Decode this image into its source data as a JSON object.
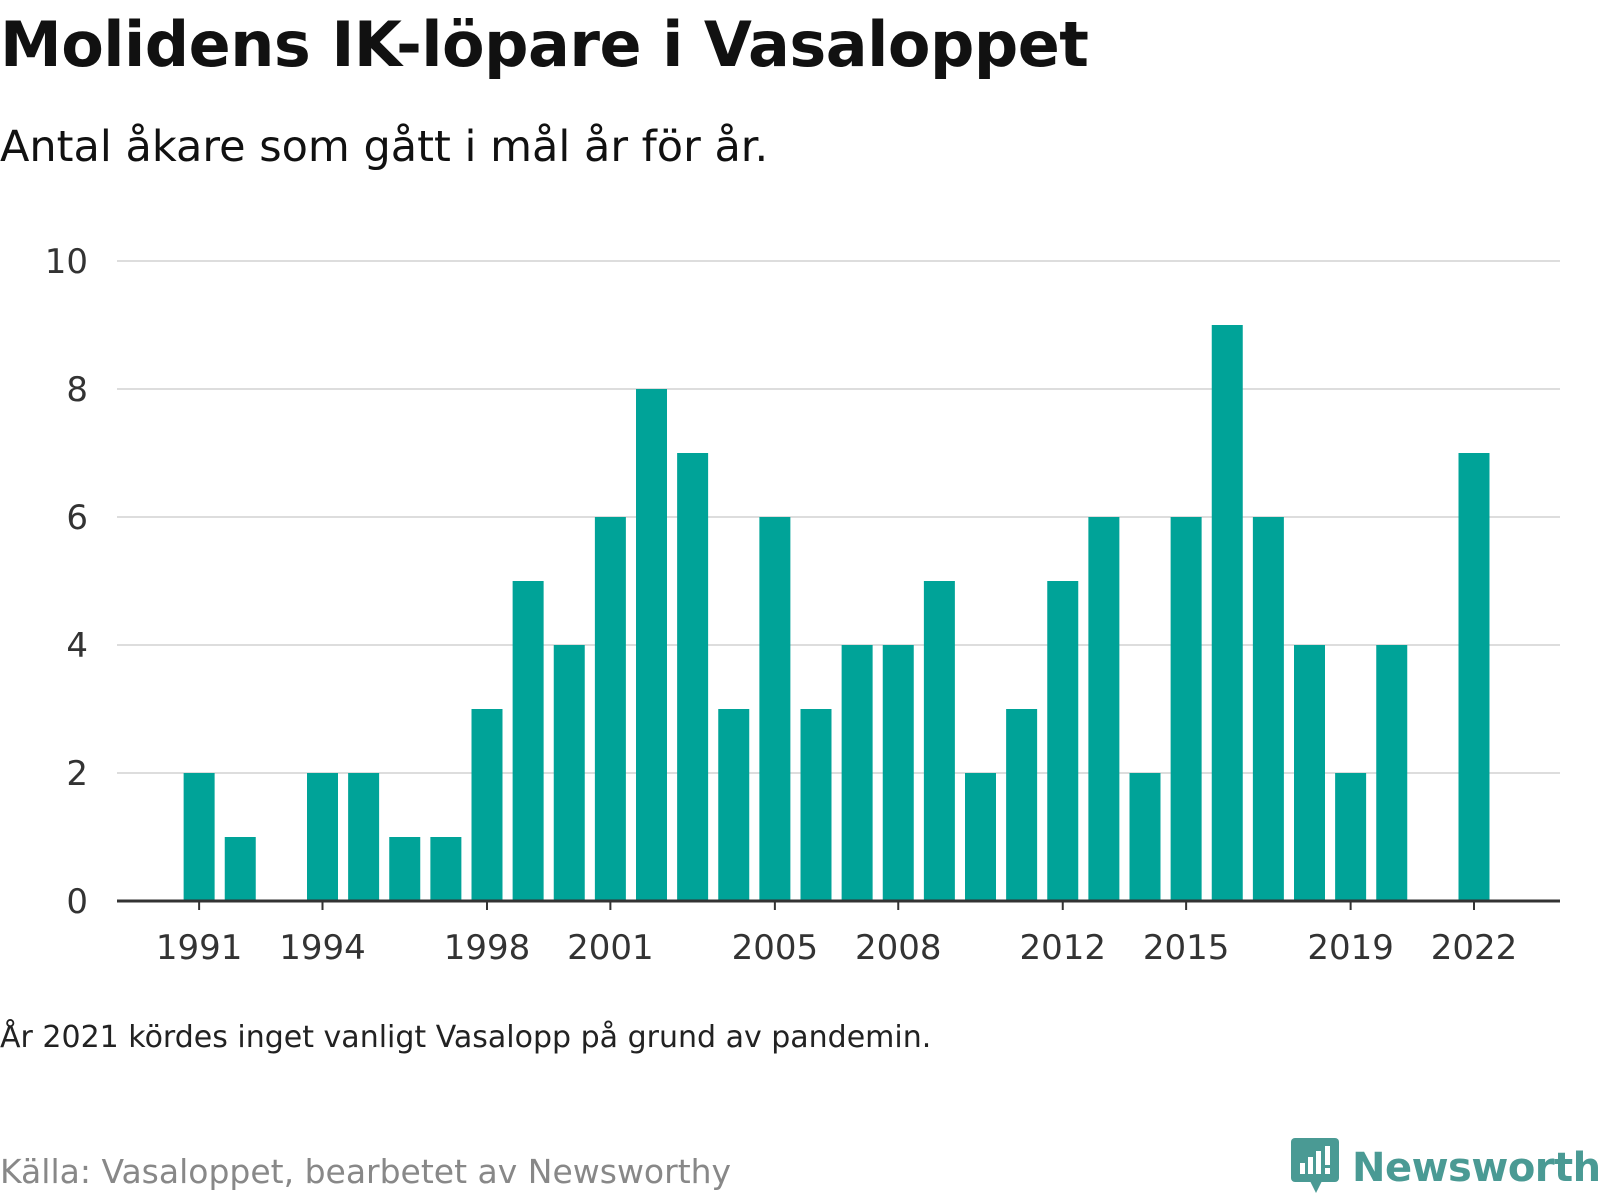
{
  "header": {
    "title": "Molidens IK-löpare i Vasaloppet",
    "subtitle": "Antal åkare som gått i mål år för år."
  },
  "footer": {
    "note": "År 2021 kördes inget vanligt Vasalopp på grund av pandemin.",
    "source": "Källa: Vasaloppet, bearbetet av Newsworthy",
    "brand": "Newsworthy",
    "brand_icon": "newsworthy-logo-icon"
  },
  "colors": {
    "bar": "#00a398",
    "grid": "#dddddd",
    "axis": "#333333",
    "brand": "#4a9a94"
  },
  "chart_data": {
    "type": "bar",
    "categories": [
      "1990",
      "1991",
      "1992",
      "1993",
      "1994",
      "1995",
      "1996",
      "1997",
      "1998",
      "1999",
      "2000",
      "2001",
      "2002",
      "2003",
      "2004",
      "2005",
      "2006",
      "2007",
      "2008",
      "2009",
      "2010",
      "2011",
      "2012",
      "2013",
      "2014",
      "2015",
      "2016",
      "2017",
      "2018",
      "2019",
      "2020",
      "2021",
      "2022"
    ],
    "values": [
      null,
      2,
      1,
      null,
      2,
      2,
      1,
      1,
      3,
      5,
      4,
      6,
      8,
      7,
      3,
      6,
      3,
      4,
      4,
      5,
      2,
      3,
      5,
      6,
      2,
      6,
      9,
      6,
      4,
      2,
      4,
      null,
      7
    ],
    "x_tick_labels": [
      "1991",
      "1994",
      "1998",
      "2001",
      "2005",
      "2008",
      "2012",
      "2015",
      "2019",
      "2022"
    ],
    "y_ticks": [
      0,
      2,
      4,
      6,
      8,
      10
    ],
    "ylim": [
      0,
      10
    ],
    "grid": true,
    "title": "Molidens IK-löpare i Vasaloppet",
    "xlabel": "",
    "ylabel": ""
  }
}
